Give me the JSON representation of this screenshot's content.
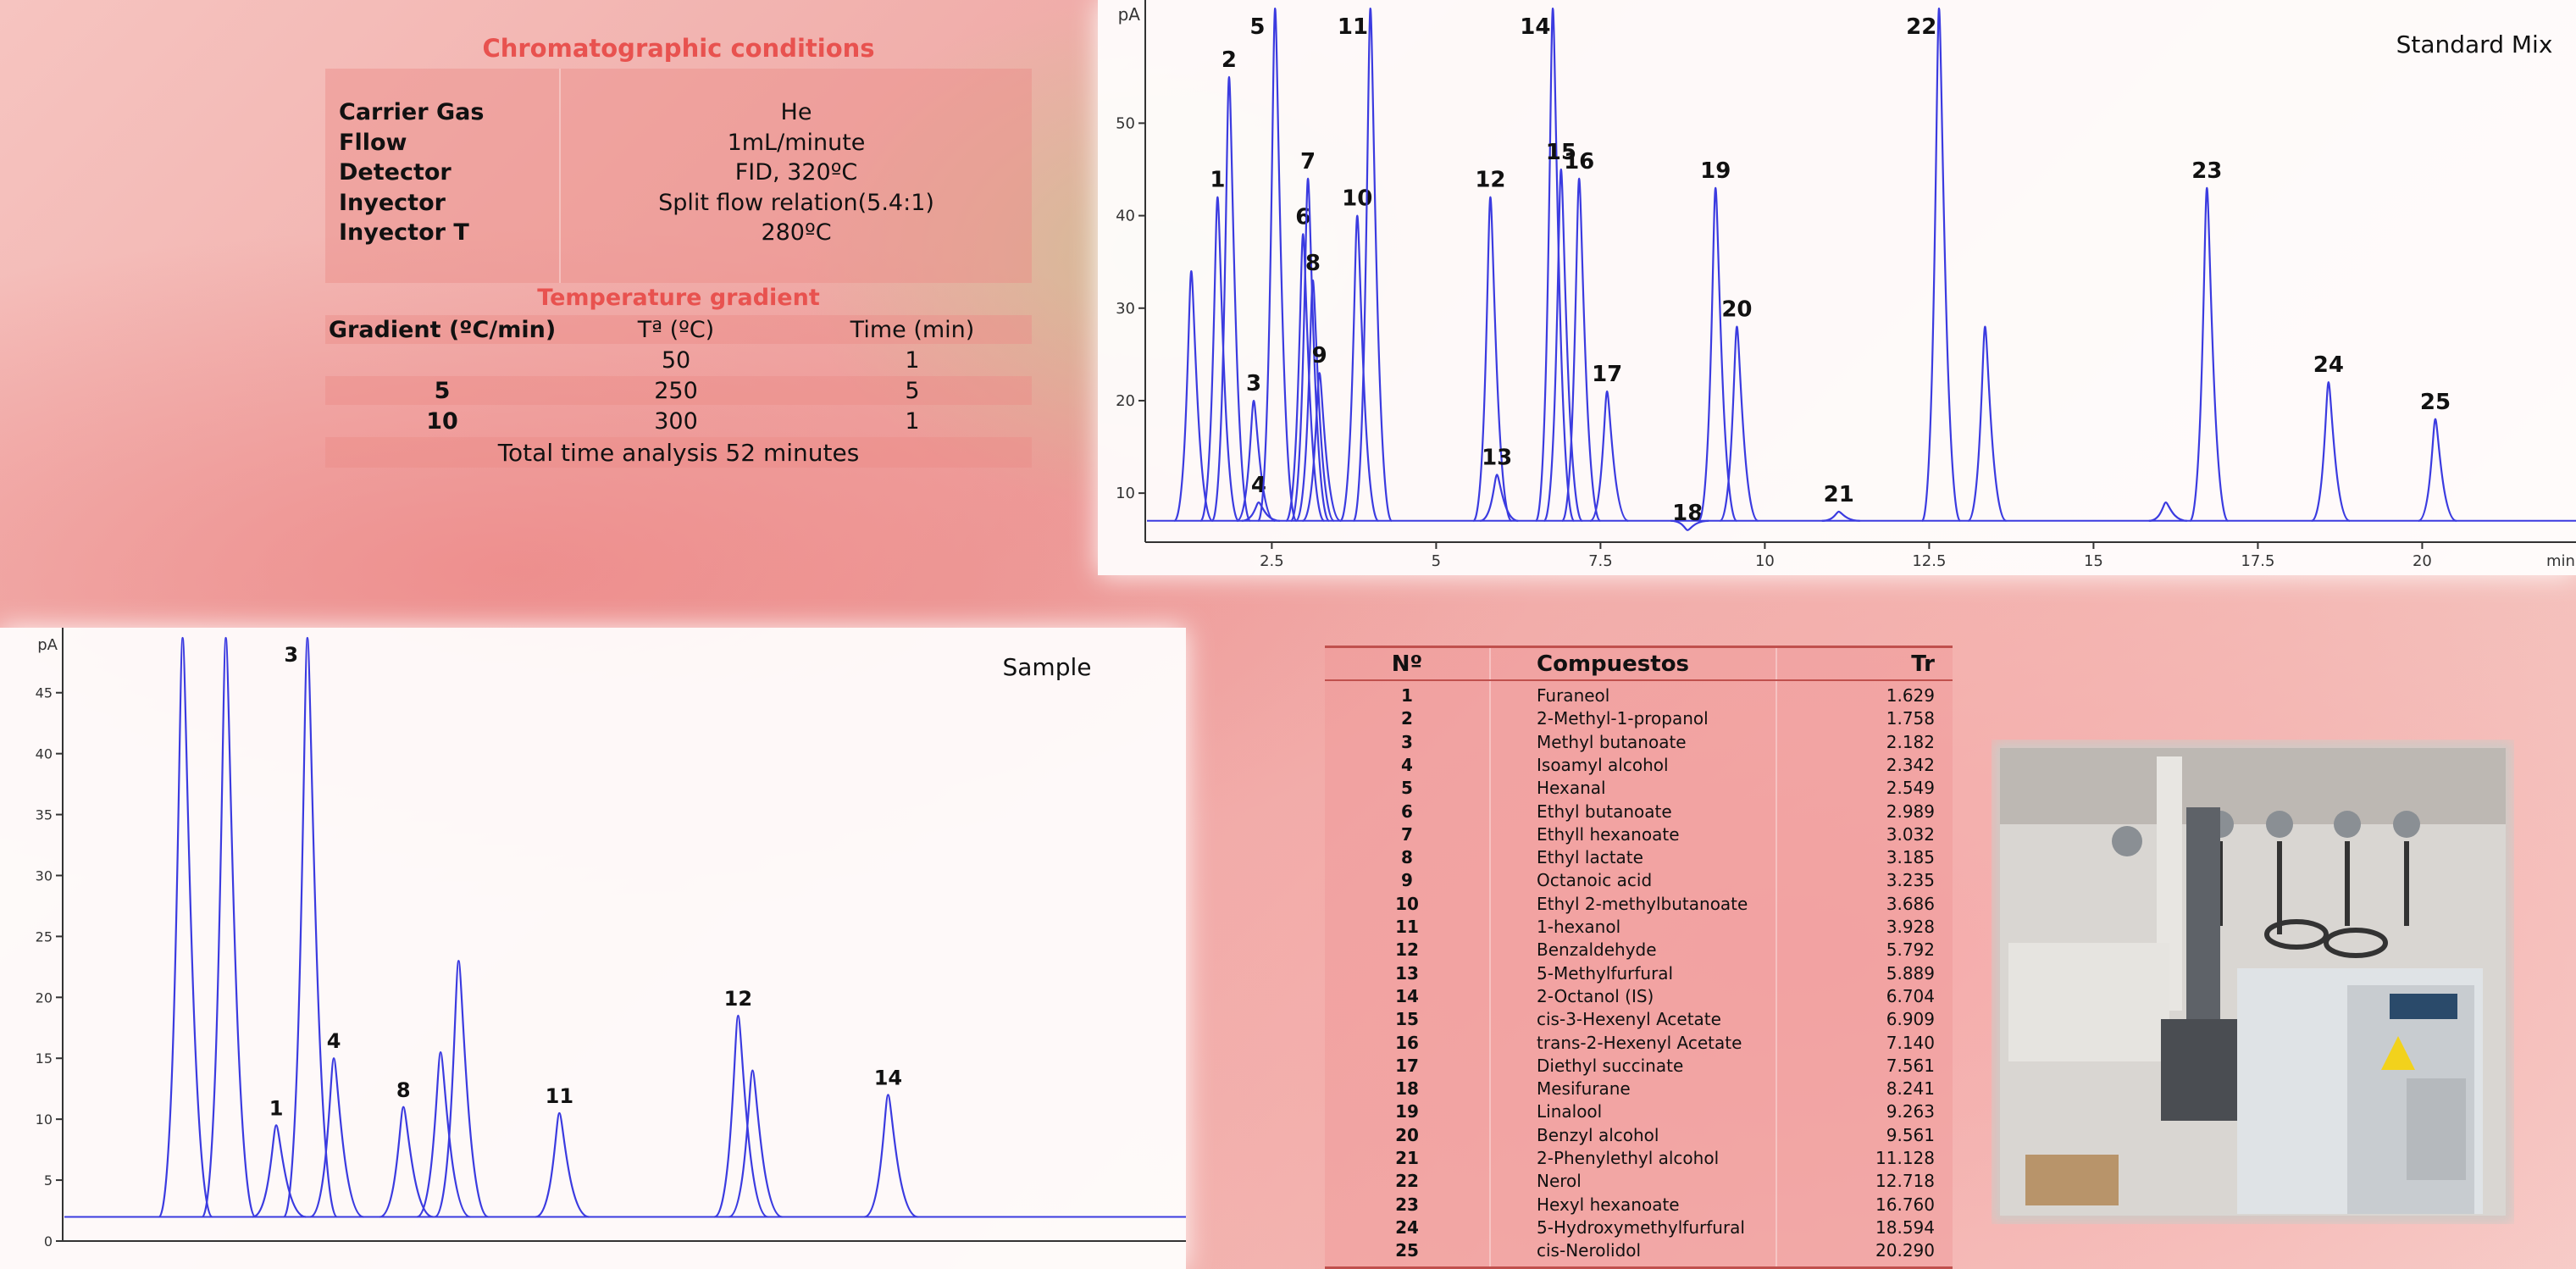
{
  "conditions": {
    "title": "Chromatographic conditions",
    "rows": [
      [
        "Carrier Gas",
        "He"
      ],
      [
        "Fllow",
        "1mL/minute"
      ],
      [
        "Detector",
        "FID, 320ºC"
      ],
      [
        "Inyector",
        "Split flow relation(5.4:1)"
      ],
      [
        "Inyector T",
        "280ºC"
      ]
    ]
  },
  "gradient": {
    "title": "Temperature gradient",
    "header": [
      "Gradient (ºC/min)",
      "Tª (ºC)",
      "Time (min)"
    ],
    "rows": [
      [
        null,
        50,
        1
      ],
      [
        5,
        250,
        5
      ],
      [
        10,
        300,
        1
      ]
    ],
    "footer": "Total time analysis 52 minutes"
  },
  "compounds": {
    "header": [
      "Nº",
      "Compuestos",
      "Tr"
    ],
    "rows": [
      [
        1,
        "Furaneol",
        "1.629"
      ],
      [
        2,
        "2-Methyl-1-propanol",
        "1.758"
      ],
      [
        3,
        "Methyl butanoate",
        "2.182"
      ],
      [
        4,
        "Isoamyl alcohol",
        "2.342"
      ],
      [
        5,
        "Hexanal",
        "2.549"
      ],
      [
        6,
        "Ethyl butanoate",
        "2.989"
      ],
      [
        7,
        "Ethyll hexanoate",
        "3.032"
      ],
      [
        8,
        "Ethyl lactate",
        "3.185"
      ],
      [
        9,
        "Octanoic acid",
        "3.235"
      ],
      [
        10,
        "Ethyl 2-methylbutanoate",
        "3.686"
      ],
      [
        11,
        "1-hexanol",
        "3.928"
      ],
      [
        12,
        "Benzaldehyde",
        "5.792"
      ],
      [
        13,
        "5-Methylfurfural",
        "5.889"
      ],
      [
        14,
        "2-Octanol (IS)",
        "6.704"
      ],
      [
        15,
        "cis-3-Hexenyl Acetate",
        "6.909"
      ],
      [
        16,
        "trans-2-Hexenyl Acetate",
        "7.140"
      ],
      [
        17,
        "Diethyl succinate",
        "7.561"
      ],
      [
        18,
        "Mesifurane",
        "8.241"
      ],
      [
        19,
        "Linalool",
        "9.263"
      ],
      [
        20,
        "Benzyl alcohol",
        "9.561"
      ],
      [
        21,
        "2-Phenylethyl alcohol",
        "11.128"
      ],
      [
        22,
        "Nerol",
        "12.718"
      ],
      [
        23,
        "Hexyl hexanoate",
        "16.760"
      ],
      [
        24,
        "5-Hydroxymethylfurfural",
        "18.594"
      ],
      [
        25,
        "cis-Nerolidol",
        "20.290"
      ]
    ]
  },
  "chart_data": [
    {
      "type": "line",
      "title": "Standard Mix",
      "x_label": "min",
      "y_label": "pA",
      "color": "#3b3be0",
      "categories": [
        null,
        "1",
        "2",
        "3",
        "4",
        "5",
        "6",
        "7",
        "8",
        "9",
        "10",
        "11",
        "12",
        "13",
        "14",
        "15",
        "16",
        "17",
        "18",
        "19",
        "20",
        "21",
        "22",
        null,
        null,
        "23",
        "24",
        "25"
      ],
      "x": [
        1.275,
        1.675,
        1.85,
        2.225,
        2.3,
        2.55,
        2.975,
        3.05,
        3.125,
        3.225,
        3.8,
        4.0,
        5.825,
        5.925,
        6.775,
        6.9,
        7.175,
        7.6,
        8.825,
        9.25,
        9.575,
        11.125,
        12.65,
        13.35,
        16.1,
        16.725,
        18.575,
        20.2
      ],
      "values": [
        34,
        42,
        55,
        20,
        9,
        62.4,
        38,
        44,
        33,
        23,
        40,
        62.4,
        42,
        12,
        62.4,
        45,
        44,
        21,
        6,
        43,
        28,
        8,
        62.4,
        28,
        9,
        43,
        22,
        18
      ],
      "xlim": [
        0.575,
        21.85
      ],
      "ylim": [
        4.7,
        62.4
      ],
      "xticks": [
        2.5,
        5,
        7.5,
        10,
        12.5,
        15,
        17.5,
        20
      ],
      "yticks": [
        10,
        20,
        30,
        40,
        50
      ]
    },
    {
      "type": "line",
      "title": "Sample",
      "y_label": "pA",
      "color": "#3b3be0",
      "categories": [
        null,
        null,
        "1",
        "3",
        "4",
        "8",
        null,
        null,
        "11",
        "12",
        null,
        "14"
      ],
      "x": [
        1.0,
        1.36,
        1.78,
        2.04,
        2.26,
        2.84,
        3.15,
        3.3,
        4.14,
        5.63,
        5.75,
        6.88
      ],
      "values": [
        49.5,
        49.5,
        9.5,
        49.5,
        15,
        11,
        15.5,
        23,
        10.5,
        18.5,
        14,
        12
      ],
      "xlim": [
        0,
        9.2
      ],
      "ylim": [
        0,
        49.5
      ],
      "yticks": [
        0,
        5,
        10,
        15,
        20,
        25,
        30,
        35,
        40,
        45
      ]
    }
  ]
}
